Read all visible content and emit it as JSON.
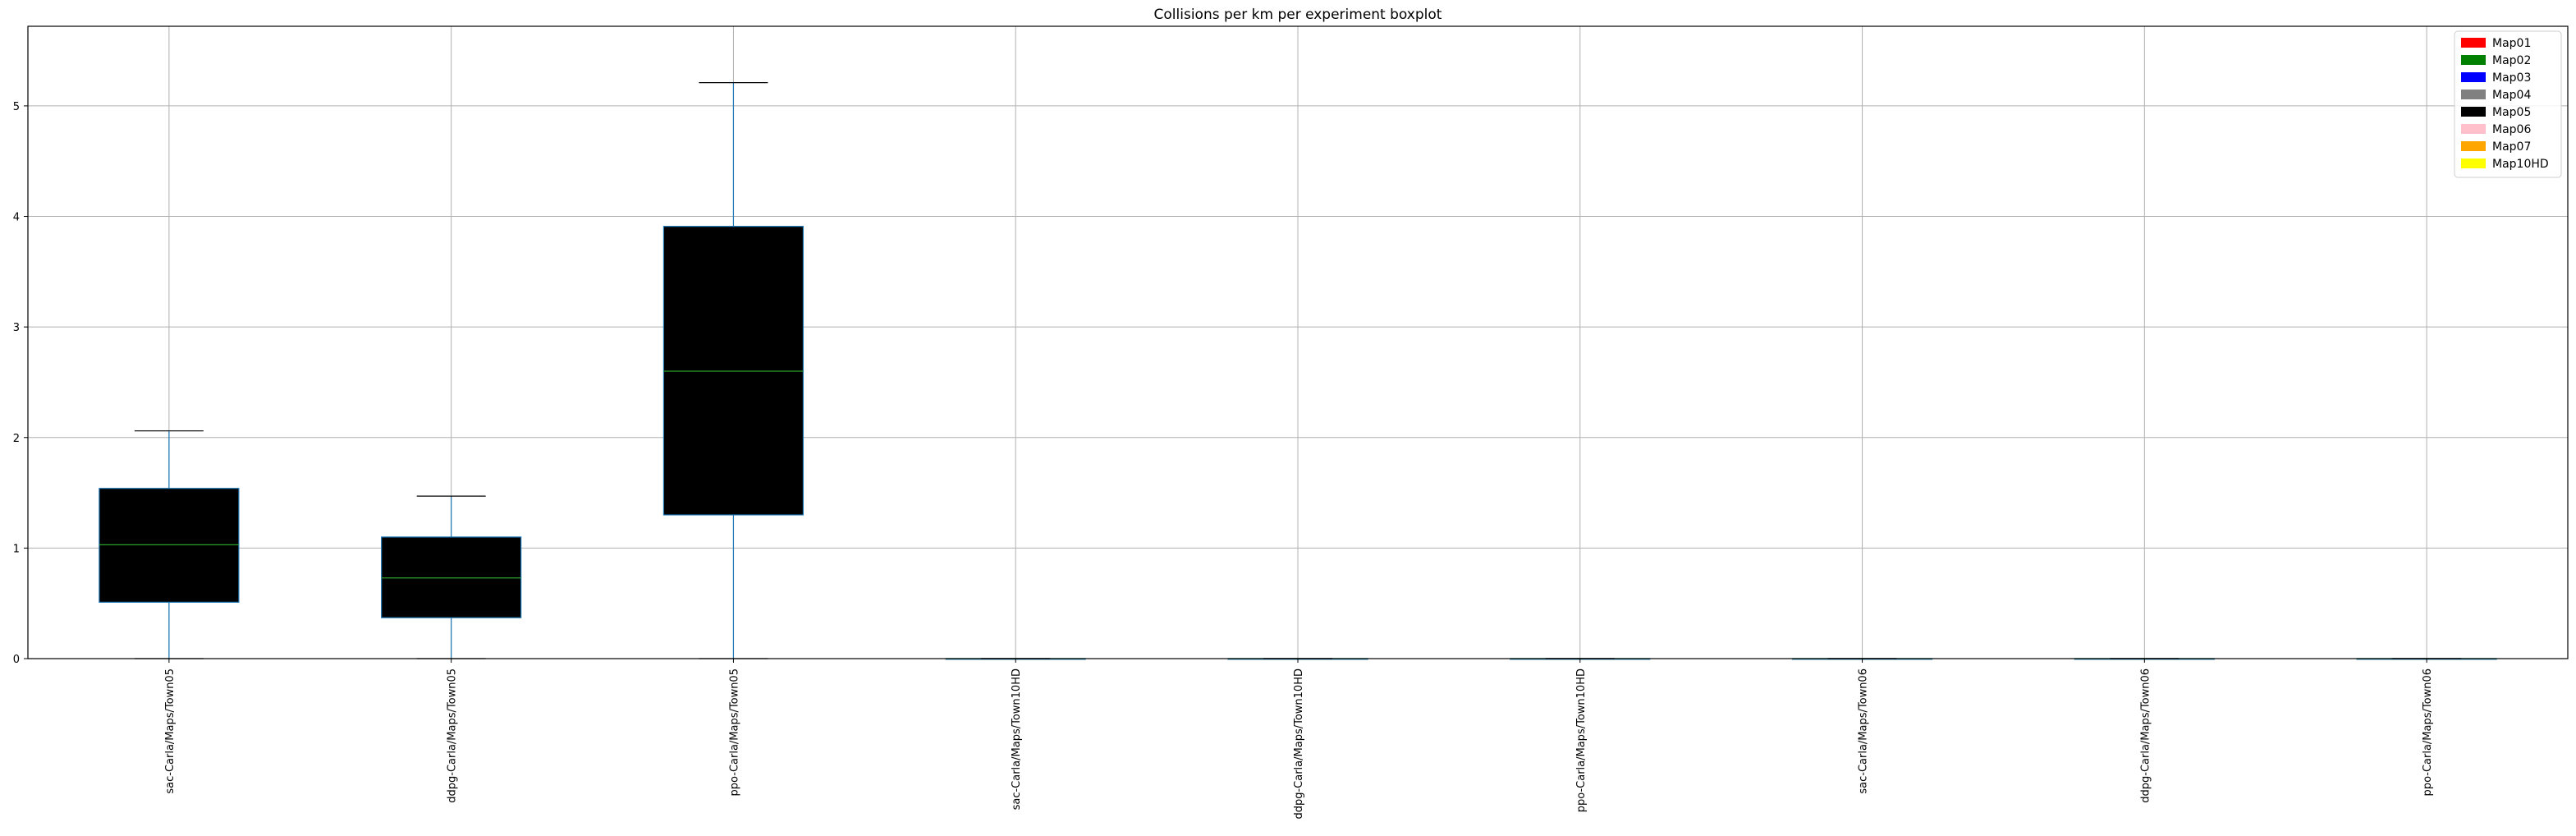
{
  "chart_data": {
    "type": "box",
    "title": "Collisions per km per experiment boxplot",
    "xlabel": "",
    "ylabel": "",
    "ylim": [
      0,
      5.72
    ],
    "yticks": [
      0,
      1,
      2,
      3,
      4,
      5
    ],
    "ytick_labels": [
      "0",
      "1",
      "2",
      "3",
      "4",
      "5"
    ],
    "grid": true,
    "categories": [
      "sac-Carla/Maps/Town05",
      "ddpg-Carla/Maps/Town05",
      "ppo-Carla/Maps/Town05",
      "sac-Carla/Maps/Town10HD",
      "ddpg-Carla/Maps/Town10HD",
      "ppo-Carla/Maps/Town10HD",
      "sac-Carla/Maps/Town06",
      "ddpg-Carla/Maps/Town06",
      "ppo-Carla/Maps/Town06"
    ],
    "boxes": [
      {
        "min": 0.0,
        "q1": 0.51,
        "median": 1.03,
        "q3": 1.54,
        "max": 2.06,
        "fill": "#000000"
      },
      {
        "min": 0.0,
        "q1": 0.37,
        "median": 0.73,
        "q3": 1.1,
        "max": 1.47,
        "fill": "#000000"
      },
      {
        "min": 0.0,
        "q1": 1.3,
        "median": 2.6,
        "q3": 3.91,
        "max": 5.21,
        "fill": "#000000"
      },
      {
        "min": 0.0,
        "q1": 0.0,
        "median": 0.0,
        "q3": 0.0,
        "max": 0.0,
        "fill": "#000000"
      },
      {
        "min": 0.0,
        "q1": 0.0,
        "median": 0.0,
        "q3": 0.0,
        "max": 0.0,
        "fill": "#000000"
      },
      {
        "min": 0.0,
        "q1": 0.0,
        "median": 0.0,
        "q3": 0.0,
        "max": 0.0,
        "fill": "#000000"
      },
      {
        "min": 0.0,
        "q1": 0.0,
        "median": 0.0,
        "q3": 0.0,
        "max": 0.0,
        "fill": "#000000"
      },
      {
        "min": 0.0,
        "q1": 0.0,
        "median": 0.0,
        "q3": 0.0,
        "max": 0.0,
        "fill": "#000000"
      },
      {
        "min": 0.0,
        "q1": 0.0,
        "median": 0.0,
        "q3": 0.0,
        "max": 0.0,
        "fill": "#000000"
      }
    ],
    "legend_position": "top-right",
    "legend": [
      {
        "label": "Map01",
        "color": "#ff0000"
      },
      {
        "label": "Map02",
        "color": "#008000"
      },
      {
        "label": "Map03",
        "color": "#0000ff"
      },
      {
        "label": "Map04",
        "color": "#808080"
      },
      {
        "label": "Map05",
        "color": "#000000"
      },
      {
        "label": "Map06",
        "color": "#ffc0cb"
      },
      {
        "label": "Map07",
        "color": "#ffa500"
      },
      {
        "label": "Map10HD",
        "color": "#ffff00"
      }
    ],
    "colors": {
      "box_edge": "#1f77b4",
      "whisker": "#1f77b4",
      "cap": "#000000",
      "median": "#2ca02c",
      "grid": "#b0b0b0",
      "axes": "#000000"
    }
  }
}
